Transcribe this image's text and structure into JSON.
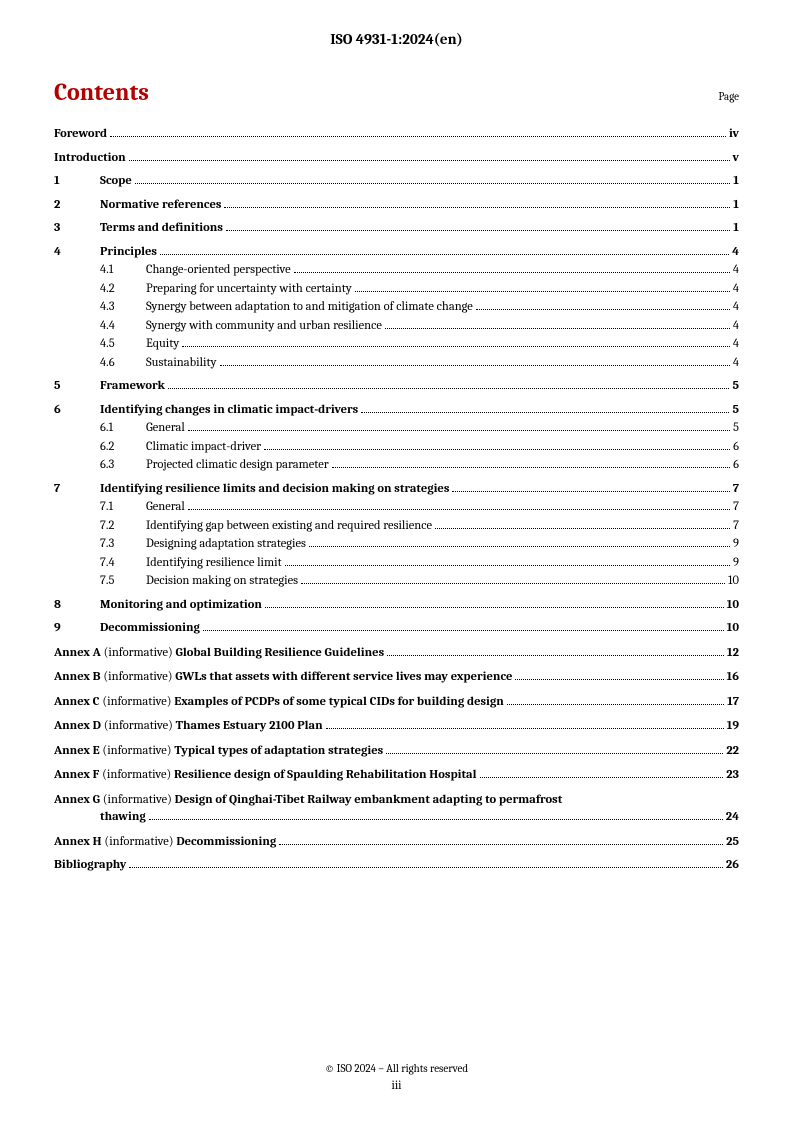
{
  "header": "ISO 4931-1:2024(en)",
  "contents_heading": "Contents",
  "page_label": "Page",
  "footer_copyright": "© ISO 2024 – All rights reserved",
  "footer_page": "iii",
  "colors": {
    "accent": "#b30000",
    "text": "#000000",
    "background": "#ffffff"
  },
  "toc": [
    {
      "type": "front",
      "title": "Foreword",
      "page": "iv",
      "bold": true
    },
    {
      "type": "front",
      "title": "Introduction",
      "page": "v",
      "bold": true
    },
    {
      "type": "section",
      "num": "1",
      "title": "Scope",
      "page": "1",
      "bold": true
    },
    {
      "type": "section",
      "num": "2",
      "title": "Normative references",
      "page": "1",
      "bold": true
    },
    {
      "type": "section",
      "num": "3",
      "title": "Terms and definitions",
      "page": "1",
      "bold": true
    },
    {
      "type": "section",
      "num": "4",
      "title": "Principles",
      "page": "4",
      "bold": true,
      "children": [
        {
          "num": "4.1",
          "title": "Change-oriented perspective",
          "page": "4"
        },
        {
          "num": "4.2",
          "title": "Preparing for uncertainty with certainty",
          "page": "4"
        },
        {
          "num": "4.3",
          "title": "Synergy between adaptation to and mitigation of climate change",
          "page": "4"
        },
        {
          "num": "4.4",
          "title": "Synergy with community and urban resilience",
          "page": "4"
        },
        {
          "num": "4.5",
          "title": "Equity",
          "page": "4"
        },
        {
          "num": "4.6",
          "title": "Sustainability",
          "page": "4"
        }
      ]
    },
    {
      "type": "section",
      "num": "5",
      "title": "Framework",
      "page": "5",
      "bold": true
    },
    {
      "type": "section",
      "num": "6",
      "title": "Identifying changes in climatic impact-drivers",
      "page": "5",
      "bold": true,
      "children": [
        {
          "num": "6.1",
          "title": "General",
          "page": "5"
        },
        {
          "num": "6.2",
          "title": "Climatic impact-driver",
          "page": "6"
        },
        {
          "num": "6.3",
          "title": "Projected climatic design parameter",
          "page": "6"
        }
      ]
    },
    {
      "type": "section",
      "num": "7",
      "title": "Identifying resilience limits and decision making on strategies",
      "page": "7",
      "bold": true,
      "children": [
        {
          "num": "7.1",
          "title": "General",
          "page": "7"
        },
        {
          "num": "7.2",
          "title": "Identifying gap between existing and required resilience",
          "page": "7"
        },
        {
          "num": "7.3",
          "title": "Designing adaptation strategies",
          "page": "9"
        },
        {
          "num": "7.4",
          "title": "Identifying resilience limit",
          "page": "9"
        },
        {
          "num": "7.5",
          "title": "Decision making on strategies",
          "page": "10"
        }
      ]
    },
    {
      "type": "section",
      "num": "8",
      "title": "Monitoring and optimization",
      "page": "10",
      "bold": true
    },
    {
      "type": "section",
      "num": "9",
      "title": "Decommissioning",
      "page": "10",
      "bold": true
    },
    {
      "type": "annex",
      "label": "Annex A",
      "info": "(informative)",
      "title": "Global Building Resilience Guidelines",
      "page": "12"
    },
    {
      "type": "annex",
      "label": "Annex B",
      "info": "(informative)",
      "title": "GWLs that assets with different service lives may experience",
      "page": "16"
    },
    {
      "type": "annex",
      "label": "Annex C",
      "info": "(informative)",
      "title": "Examples of PCDPs of some typical CIDs for building design",
      "page": "17"
    },
    {
      "type": "annex",
      "label": "Annex D",
      "info": "(informative)",
      "title": "Thames Estuary 2100 Plan",
      "page": "19"
    },
    {
      "type": "annex",
      "label": "Annex E",
      "info": "(informative)",
      "title": "Typical types of adaptation strategies",
      "page": "22"
    },
    {
      "type": "annex",
      "label": "Annex F",
      "info": "(informative)",
      "title": "Resilience design of Spaulding Rehabilitation Hospital",
      "page": "23"
    },
    {
      "type": "annex",
      "label": "Annex G",
      "info": "(informative)",
      "title_line1": "Design of Qinghai-Tibet Railway embankment adapting to permafrost",
      "title_line2": "thawing",
      "page": "24",
      "multiline": true
    },
    {
      "type": "annex",
      "label": "Annex H",
      "info": "(informative)",
      "title": "Decommissioning",
      "page": "25"
    },
    {
      "type": "front",
      "title": "Bibliography",
      "page": "26",
      "bold": true
    }
  ]
}
